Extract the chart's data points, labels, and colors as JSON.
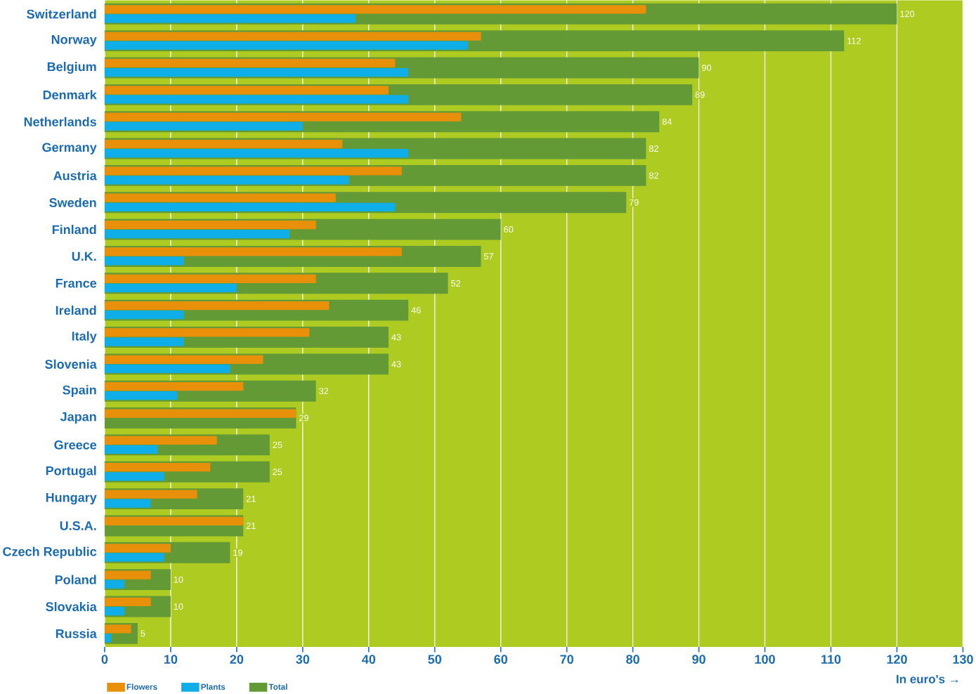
{
  "chart_data": {
    "type": "bar",
    "orientation": "horizontal",
    "categories": [
      "Switzerland",
      "Norway",
      "Belgium",
      "Denmark",
      "Netherlands",
      "Germany",
      "Austria",
      "Sweden",
      "Finland",
      "U.K.",
      "France",
      "Ireland",
      "Italy",
      "Slovenia",
      "Spain",
      "Japan",
      "Greece",
      "Portugal",
      "Hungary",
      "U.S.A.",
      "Czech Republic",
      "Poland",
      "Slovakia",
      "Russia"
    ],
    "series": [
      {
        "name": "Flowers",
        "color": "#e8900a",
        "values": [
          82,
          57,
          44,
          43,
          54,
          36,
          45,
          35,
          32,
          45,
          32,
          34,
          31,
          24,
          21,
          29,
          17,
          16,
          14,
          21,
          10,
          7,
          7,
          4
        ]
      },
      {
        "name": "Plants",
        "color": "#10aee8",
        "values": [
          38,
          55,
          46,
          46,
          30,
          46,
          37,
          44,
          28,
          12,
          20,
          12,
          12,
          19,
          11,
          null,
          8,
          9,
          7,
          null,
          9,
          3,
          3,
          1
        ]
      },
      {
        "name": "Total",
        "color": "#639a35",
        "values": [
          120,
          112,
          90,
          89,
          84,
          82,
          82,
          79,
          60,
          57,
          52,
          46,
          43,
          43,
          32,
          29,
          25,
          25,
          21,
          21,
          19,
          10,
          10,
          5
        ],
        "value_labels": [
          "120",
          "112",
          "90",
          "89",
          "84",
          "82",
          "82",
          "79",
          "60",
          "57",
          "52",
          "46",
          "43",
          "43",
          "32",
          "29",
          "25",
          "25",
          "21",
          "21",
          "19",
          "10",
          "10",
          "5"
        ]
      }
    ],
    "xlabel": "In euro's →",
    "xlim": [
      0,
      130
    ],
    "xticks": [
      0,
      10,
      20,
      30,
      40,
      50,
      60,
      70,
      80,
      90,
      100,
      110,
      120,
      130
    ],
    "grid": "x",
    "legend": "bottom"
  }
}
